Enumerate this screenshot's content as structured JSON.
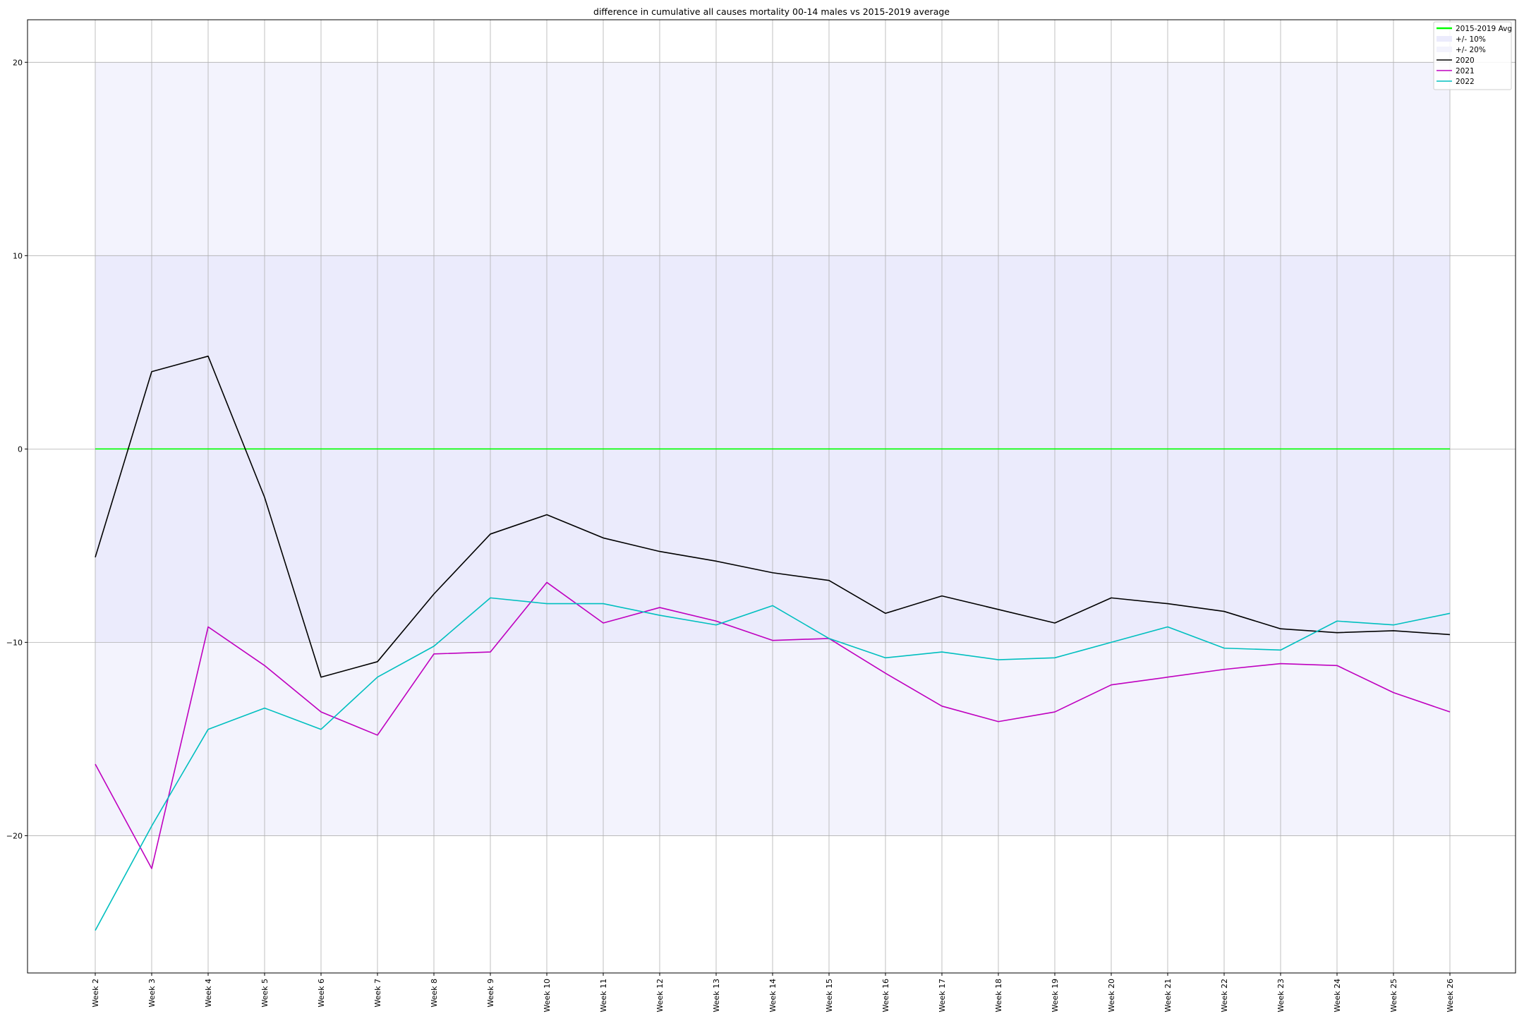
{
  "chart_data": {
    "type": "line",
    "title": "difference in cumulative all causes mortality 00-14 males vs 2015-2019 average",
    "xlabel": "",
    "ylabel": "",
    "categories": [
      "Week 2",
      "Week 3",
      "Week 4",
      "Week 5",
      "Week 6",
      "Week 7",
      "Week 8",
      "Week 9",
      "Week 10",
      "Week 11",
      "Week 12",
      "Week 13",
      "Week 14",
      "Week 15",
      "Week 16",
      "Week 17",
      "Week 18",
      "Week 19",
      "Week 20",
      "Week 21",
      "Week 22",
      "Week 23",
      "Week 24",
      "Week 25",
      "Week 26"
    ],
    "ylim": [
      -27.1,
      22.2
    ],
    "yticks": [
      -20,
      -10,
      0,
      10,
      20
    ],
    "grid": true,
    "legend_position": "top-right",
    "bands": [
      {
        "name": "+/- 10%",
        "from": -10,
        "to": 10,
        "color": "#ebebfc"
      },
      {
        "name": "+/- 20%",
        "from": -20,
        "to": 20,
        "color": "#f3f3fd"
      }
    ],
    "series": [
      {
        "name": "2015-2019 Avg",
        "color": "#00ff00",
        "values": [
          0,
          0,
          0,
          0,
          0,
          0,
          0,
          0,
          0,
          0,
          0,
          0,
          0,
          0,
          0,
          0,
          0,
          0,
          0,
          0,
          0,
          0,
          0,
          0,
          0
        ]
      },
      {
        "name": "2020",
        "color": "#000000",
        "values": [
          -5.6,
          4.0,
          4.8,
          -2.5,
          -11.8,
          -11.0,
          -7.5,
          -4.4,
          -3.4,
          -4.6,
          -5.3,
          -5.8,
          -6.4,
          -6.8,
          -8.5,
          -7.6,
          -8.3,
          -9.0,
          -7.7,
          -8.0,
          -8.4,
          -9.3,
          -9.5,
          -9.4,
          -9.6
        ]
      },
      {
        "name": "2021",
        "color": "#bf00bf",
        "values": [
          -16.3,
          -21.7,
          -9.2,
          -11.2,
          -13.6,
          -14.8,
          -10.6,
          -10.5,
          -6.9,
          -9.0,
          -8.2,
          -8.9,
          -9.9,
          -9.8,
          -11.6,
          -13.3,
          -14.1,
          -13.6,
          -12.2,
          -11.8,
          -11.4,
          -11.1,
          -11.2,
          -12.6,
          -13.6
        ]
      },
      {
        "name": "2022",
        "color": "#00bfbf",
        "values": [
          -24.9,
          -19.5,
          -14.5,
          -13.4,
          -14.5,
          -11.8,
          -10.2,
          -7.7,
          -8.0,
          -8.0,
          -8.6,
          -9.1,
          -8.1,
          -9.8,
          -10.8,
          -10.5,
          -10.9,
          -10.8,
          -10.0,
          -9.2,
          -10.3,
          -10.4,
          -8.9,
          -9.1,
          -8.5
        ]
      }
    ]
  }
}
